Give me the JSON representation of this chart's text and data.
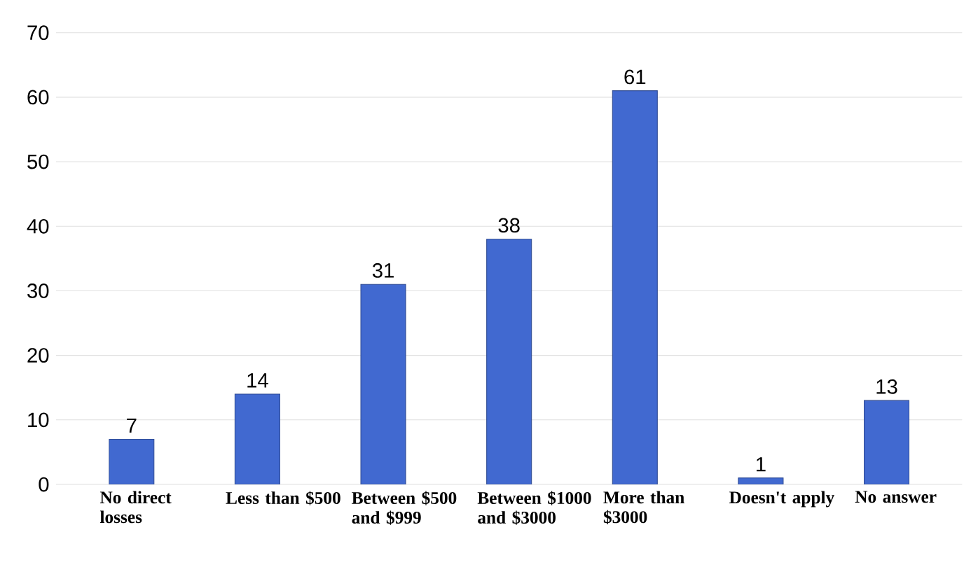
{
  "chart_data": {
    "type": "bar",
    "categories": [
      "No direct losses",
      "Less than $500",
      "Between $500 and $999",
      "Between $1000 and $3000",
      "More than $3000",
      "Doesn't apply",
      "No answer"
    ],
    "values": [
      7,
      14,
      31,
      38,
      61,
      1,
      13
    ],
    "color": "#4169d0",
    "ylim": [
      0,
      70
    ],
    "yticks": [
      0,
      10,
      20,
      30,
      40,
      50,
      60,
      70
    ],
    "grid": "y",
    "data_labels": true
  }
}
